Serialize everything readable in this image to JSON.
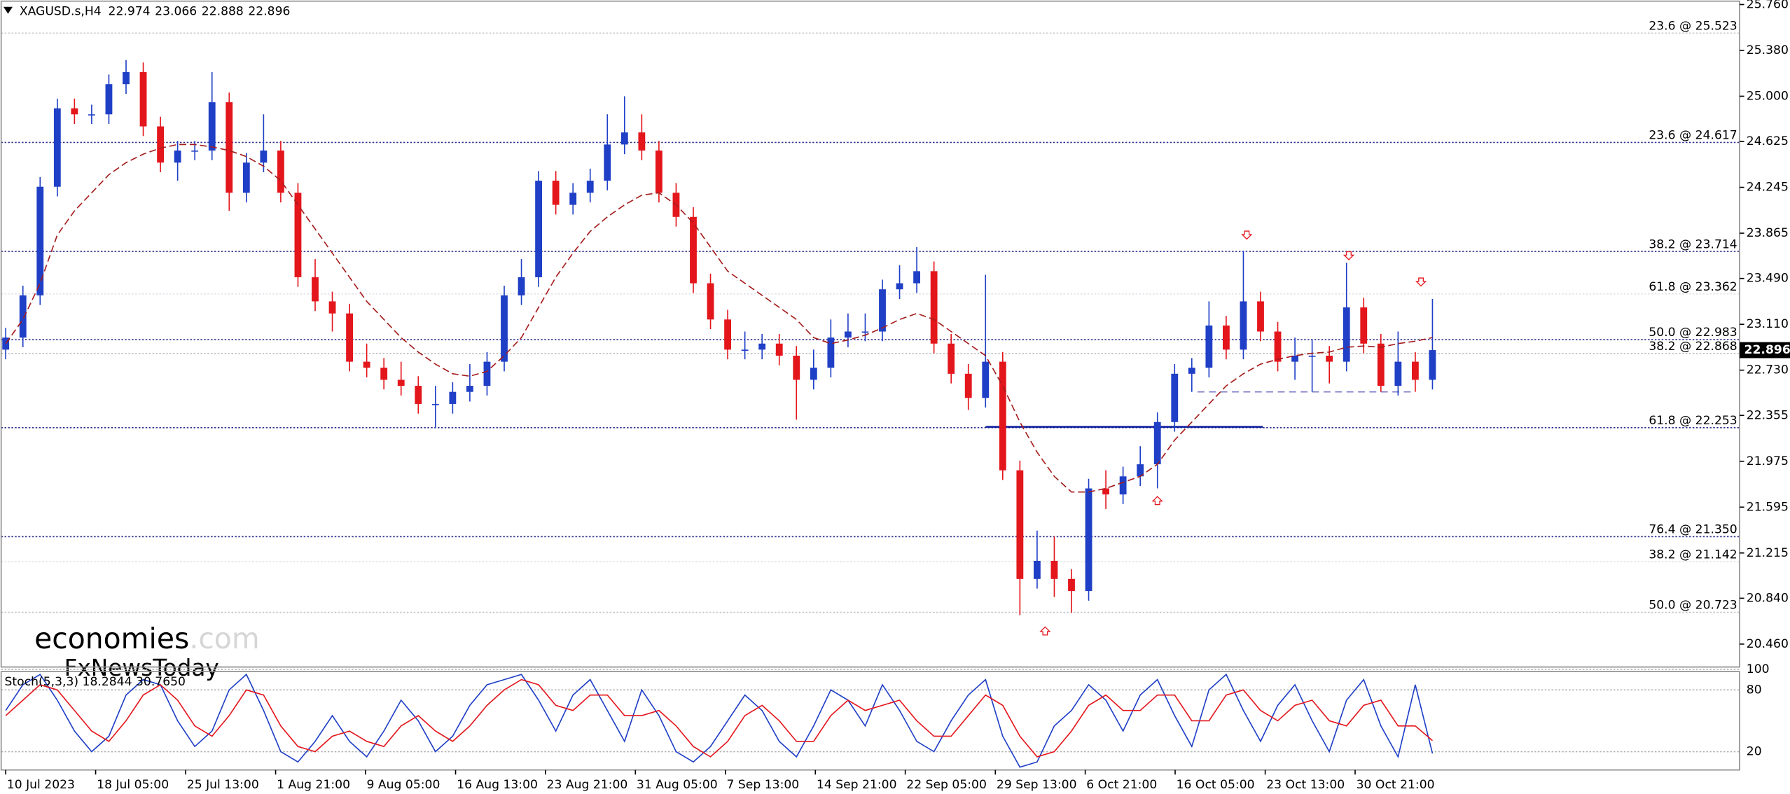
{
  "chart_data": [
    {
      "type": "candlestick",
      "title": "XAGUSD.s,H4",
      "header_values": [
        22.974,
        23.066,
        22.888,
        22.896
      ],
      "open": [
        22.9,
        23.0,
        23.35,
        24.25,
        24.9,
        24.85,
        24.85,
        25.1,
        25.2,
        24.75,
        24.45,
        24.55,
        24.55,
        24.95,
        24.2,
        24.45,
        24.55,
        24.2,
        23.5,
        23.3,
        23.2,
        22.8,
        22.75,
        22.65,
        22.6,
        22.45,
        22.45,
        22.55,
        22.6,
        22.8,
        23.35,
        23.5,
        24.3,
        24.1,
        24.2,
        24.3,
        24.6,
        24.7,
        24.55,
        24.2,
        24.0,
        23.45,
        23.15,
        22.9,
        22.9,
        22.95,
        22.85,
        22.65,
        22.75,
        23.0,
        23.05,
        23.05,
        23.4,
        23.45,
        23.55,
        22.95,
        22.7,
        22.5,
        22.8,
        21.9,
        21.0,
        21.15,
        21.0,
        20.9,
        21.75,
        21.7,
        21.85,
        21.95,
        22.3,
        22.7,
        22.75,
        23.1,
        22.9,
        23.3,
        23.05,
        22.8,
        22.85,
        22.85,
        22.8,
        23.25,
        22.95,
        22.6,
        22.8,
        22.65
      ],
      "high": [
        23.08,
        23.43,
        24.33,
        24.98,
        24.98,
        24.93,
        25.18,
        25.3,
        25.28,
        24.83,
        24.63,
        24.63,
        25.2,
        25.03,
        24.53,
        24.85,
        24.63,
        24.28,
        23.65,
        23.38,
        23.28,
        22.95,
        22.83,
        22.8,
        22.68,
        22.6,
        22.63,
        22.78,
        22.88,
        23.43,
        23.65,
        24.38,
        24.38,
        24.28,
        24.4,
        24.85,
        25.0,
        24.85,
        24.63,
        24.28,
        24.08,
        23.53,
        23.23,
        23.05,
        23.03,
        23.03,
        22.93,
        22.9,
        23.15,
        23.2,
        23.2,
        23.48,
        23.6,
        23.75,
        23.63,
        23.03,
        22.78,
        23.52,
        22.88,
        21.98,
        21.4,
        21.35,
        21.08,
        21.83,
        21.9,
        21.93,
        22.1,
        22.38,
        22.78,
        22.83,
        23.3,
        23.18,
        23.72,
        23.38,
        23.13,
        23.0,
        22.98,
        22.93,
        23.62,
        23.33,
        23.03,
        23.05,
        22.88,
        23.32
      ],
      "low": [
        22.82,
        22.92,
        23.27,
        24.17,
        24.77,
        24.77,
        24.77,
        25.02,
        24.67,
        24.37,
        24.3,
        24.47,
        24.47,
        24.05,
        24.12,
        24.37,
        24.12,
        23.42,
        23.22,
        23.05,
        22.72,
        22.67,
        22.57,
        22.52,
        22.37,
        22.25,
        22.37,
        22.47,
        22.52,
        22.72,
        23.27,
        23.42,
        24.02,
        24.02,
        24.12,
        24.22,
        24.52,
        24.47,
        24.12,
        23.92,
        23.37,
        23.07,
        22.82,
        22.82,
        22.82,
        22.77,
        22.32,
        22.57,
        22.67,
        22.92,
        22.97,
        22.97,
        23.32,
        23.37,
        22.87,
        22.62,
        22.4,
        22.42,
        21.82,
        20.7,
        20.92,
        20.85,
        20.72,
        20.82,
        21.58,
        21.62,
        21.77,
        21.75,
        22.22,
        22.55,
        22.67,
        22.82,
        22.82,
        22.97,
        22.72,
        22.65,
        22.55,
        22.62,
        22.72,
        22.87,
        22.55,
        22.52,
        22.55,
        22.57
      ],
      "close": [
        23.0,
        23.35,
        24.25,
        24.9,
        24.85,
        24.85,
        25.1,
        25.2,
        24.75,
        24.45,
        24.55,
        24.55,
        24.95,
        24.2,
        24.45,
        24.55,
        24.2,
        23.5,
        23.3,
        23.2,
        22.8,
        22.75,
        22.65,
        22.6,
        22.45,
        22.45,
        22.55,
        22.6,
        22.8,
        23.35,
        23.5,
        24.3,
        24.1,
        24.2,
        24.3,
        24.6,
        24.7,
        24.55,
        24.2,
        24.0,
        23.45,
        23.15,
        22.9,
        22.9,
        22.95,
        22.85,
        22.65,
        22.75,
        23.0,
        23.05,
        23.05,
        23.4,
        23.45,
        23.55,
        22.95,
        22.7,
        22.5,
        22.8,
        21.9,
        21.0,
        21.15,
        21.0,
        20.9,
        21.75,
        21.7,
        21.85,
        21.95,
        22.3,
        22.7,
        22.75,
        23.1,
        22.9,
        23.3,
        23.05,
        22.8,
        22.85,
        22.85,
        22.8,
        23.25,
        22.95,
        22.6,
        22.8,
        22.65,
        22.896
      ],
      "up_color": "#1f3fc6",
      "down_color": "#e3161c",
      "moving_average": {
        "color": "#a51c1c",
        "values": [
          22.95,
          23.15,
          23.45,
          23.85,
          24.05,
          24.2,
          24.35,
          24.45,
          24.52,
          24.57,
          24.6,
          24.6,
          24.58,
          24.55,
          24.5,
          24.42,
          24.3,
          24.1,
          23.9,
          23.7,
          23.5,
          23.3,
          23.15,
          23.0,
          22.88,
          22.78,
          22.7,
          22.68,
          22.72,
          22.85,
          23.0,
          23.25,
          23.5,
          23.7,
          23.88,
          24.0,
          24.1,
          24.18,
          24.2,
          24.1,
          23.95,
          23.75,
          23.55,
          23.45,
          23.35,
          23.25,
          23.15,
          23.0,
          22.95,
          22.98,
          23.02,
          23.08,
          23.15,
          23.2,
          23.15,
          23.05,
          22.95,
          22.85,
          22.6,
          22.3,
          22.05,
          21.85,
          21.72,
          21.72,
          21.75,
          21.8,
          21.85,
          21.95,
          22.15,
          22.3,
          22.45,
          22.6,
          22.7,
          22.78,
          22.82,
          22.85,
          22.87,
          22.88,
          22.92,
          22.93,
          22.92,
          22.95,
          22.97,
          23.0
        ]
      },
      "ylim": [
        20.27,
        25.788
      ],
      "yticks": [
        {
          "value": 25.76,
          "label": "25.760"
        },
        {
          "value": 25.38,
          "label": "25.380"
        },
        {
          "value": 25,
          "label": "25.000"
        },
        24.625,
        24.245,
        23.865,
        {
          "value": 23.49,
          "label": "23.490"
        },
        {
          "value": 23.11,
          "label": "23.110"
        },
        {
          "value": 22.73,
          "label": "22.730"
        },
        22.355,
        21.975,
        21.595,
        21.215,
        {
          "value": 20.84,
          "label": "20.840"
        },
        {
          "value": 20.46,
          "label": "20.460"
        }
      ],
      "xticks": [
        {
          "value": 0,
          "label": "10 Jul 2023"
        },
        {
          "value": 5.23,
          "label": "18 Jul 05:00"
        },
        {
          "value": 10.47,
          "label": "25 Jul 13:00"
        },
        {
          "value": 15.7,
          "label": "1 Aug 21:00"
        },
        {
          "value": 20.93,
          "label": "9 Aug 05:00"
        },
        {
          "value": 26.17,
          "label": "16 Aug 13:00"
        },
        {
          "value": 31.4,
          "label": "23 Aug 21:00"
        },
        {
          "value": 36.63,
          "label": "31 Aug 05:00"
        },
        {
          "value": 41.87,
          "label": "7 Sep 13:00"
        },
        {
          "value": 47.1,
          "label": "14 Sep 21:00"
        },
        {
          "value": 52.33,
          "label": "22 Sep 05:00"
        },
        {
          "value": 57.57,
          "label": "29 Sep 13:00"
        },
        {
          "value": 62.8,
          "label": "6 Oct 21:00"
        },
        {
          "value": 68.03,
          "label": "16 Oct 05:00"
        },
        {
          "value": 73.27,
          "label": "23 Oct 13:00"
        },
        {
          "value": 78.5,
          "label": "30 Oct 21:00"
        }
      ],
      "levels": [
        {
          "label": "23.6 @ 25.523",
          "value": 25.523,
          "color": "#c4c4c4"
        },
        {
          "label": "23.6 @ 24.617",
          "value": 24.617,
          "color": "#1c1c80"
        },
        {
          "label": "38.2 @ 23.714",
          "value": 23.714,
          "color": "#1c1c80"
        },
        {
          "label": "61.8 @ 23.362",
          "value": 23.362,
          "color": "#dcdce6"
        },
        {
          "label": "50.0 @ 22.983",
          "value": 22.983,
          "color": "#1c1c80"
        },
        {
          "label": "38.2 @ 22.868",
          "value": 22.868,
          "color": "#bdbdbd"
        },
        {
          "label": "61.8 @ 22.253",
          "value": 22.253,
          "color": "#1c1c80"
        },
        {
          "label": "76.4 @ 21.350",
          "value": 21.35,
          "color": "#1c1c80"
        },
        {
          "label": "38.2 @ 21.142",
          "value": 21.142,
          "color": "#dcdce6"
        },
        {
          "label": "50.0 @ 20.723",
          "value": 20.723,
          "color": "#bdbdbd"
        }
      ],
      "price_lines": [
        {
          "value": 22.26,
          "color": "#0a1a9c"
        },
        {
          "value": 22.55,
          "color": "#7a7ac8"
        }
      ],
      "current_price": 22.896,
      "watermark": [
        "economies",
        ".com",
        "FxNewsToday"
      ]
    },
    {
      "type": "stochastic",
      "title": "Stoch(5,3,3) 18.2844 30.7650",
      "lines": [
        {
          "color": "#1f3fc6",
          "values": [
            60,
            85,
            95,
            70,
            40,
            20,
            35,
            75,
            90,
            85,
            50,
            25,
            40,
            80,
            95,
            60,
            20,
            10,
            30,
            55,
            30,
            15,
            40,
            70,
            50,
            20,
            35,
            65,
            85,
            90,
            95,
            70,
            40,
            75,
            90,
            60,
            30,
            80,
            55,
            20,
            10,
            25,
            50,
            75,
            60,
            30,
            15,
            45,
            80,
            70,
            45,
            85,
            60,
            30,
            20,
            50,
            75,
            90,
            35,
            5,
            10,
            45,
            60,
            85,
            70,
            40,
            75,
            90,
            55,
            25,
            80,
            95,
            60,
            30,
            65,
            85,
            50,
            20,
            70,
            90,
            45,
            15,
            85,
            18.2844
          ]
        },
        {
          "color": "#e3161c",
          "values": [
            55,
            70,
            85,
            80,
            60,
            40,
            30,
            50,
            75,
            85,
            70,
            45,
            35,
            55,
            80,
            75,
            45,
            25,
            20,
            35,
            40,
            30,
            25,
            45,
            55,
            40,
            30,
            45,
            65,
            80,
            90,
            85,
            65,
            60,
            75,
            75,
            55,
            55,
            60,
            45,
            25,
            15,
            30,
            55,
            65,
            50,
            30,
            30,
            55,
            70,
            60,
            65,
            70,
            50,
            35,
            35,
            55,
            75,
            65,
            35,
            15,
            20,
            40,
            65,
            75,
            60,
            60,
            75,
            75,
            50,
            50,
            75,
            80,
            60,
            50,
            65,
            70,
            50,
            45,
            65,
            70,
            45,
            45,
            30.765
          ]
        }
      ],
      "ylim": [
        0,
        100
      ],
      "yticks": [
        100,
        80,
        20
      ]
    }
  ]
}
